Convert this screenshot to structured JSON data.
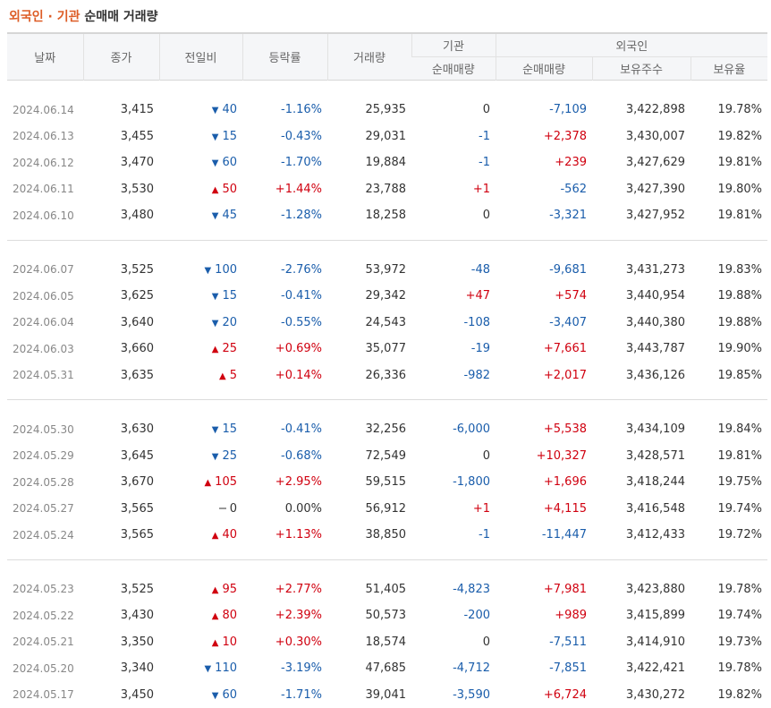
{
  "title": {
    "part1": "외국인 · 기관",
    "part2": "순매매 거래량"
  },
  "headers": {
    "date": "날짜",
    "close": "종가",
    "change": "전일비",
    "rate": "등락률",
    "volume": "거래량",
    "inst": "기관",
    "inst_net": "순매매량",
    "foreign": "외국인",
    "foreign_net": "순매매량",
    "holdings": "보유주수",
    "ratio": "보유율"
  },
  "groups": [
    [
      {
        "date": "2024.06.14",
        "close": "3,415",
        "dir": "down",
        "change": "40",
        "rate": "-1.16%",
        "volume": "25,935",
        "inst": "0",
        "foreign": "-7,109",
        "holdings": "3,422,898",
        "ratio": "19.78%"
      },
      {
        "date": "2024.06.13",
        "close": "3,455",
        "dir": "down",
        "change": "15",
        "rate": "-0.43%",
        "volume": "29,031",
        "inst": "-1",
        "foreign": "+2,378",
        "holdings": "3,430,007",
        "ratio": "19.82%"
      },
      {
        "date": "2024.06.12",
        "close": "3,470",
        "dir": "down",
        "change": "60",
        "rate": "-1.70%",
        "volume": "19,884",
        "inst": "-1",
        "foreign": "+239",
        "holdings": "3,427,629",
        "ratio": "19.81%"
      },
      {
        "date": "2024.06.11",
        "close": "3,530",
        "dir": "up",
        "change": "50",
        "rate": "+1.44%",
        "volume": "23,788",
        "inst": "+1",
        "foreign": "-562",
        "holdings": "3,427,390",
        "ratio": "19.80%"
      },
      {
        "date": "2024.06.10",
        "close": "3,480",
        "dir": "down",
        "change": "45",
        "rate": "-1.28%",
        "volume": "18,258",
        "inst": "0",
        "foreign": "-3,321",
        "holdings": "3,427,952",
        "ratio": "19.81%"
      }
    ],
    [
      {
        "date": "2024.06.07",
        "close": "3,525",
        "dir": "down",
        "change": "100",
        "rate": "-2.76%",
        "volume": "53,972",
        "inst": "-48",
        "foreign": "-9,681",
        "holdings": "3,431,273",
        "ratio": "19.83%"
      },
      {
        "date": "2024.06.05",
        "close": "3,625",
        "dir": "down",
        "change": "15",
        "rate": "-0.41%",
        "volume": "29,342",
        "inst": "+47",
        "foreign": "+574",
        "holdings": "3,440,954",
        "ratio": "19.88%"
      },
      {
        "date": "2024.06.04",
        "close": "3,640",
        "dir": "down",
        "change": "20",
        "rate": "-0.55%",
        "volume": "24,543",
        "inst": "-108",
        "foreign": "-3,407",
        "holdings": "3,440,380",
        "ratio": "19.88%"
      },
      {
        "date": "2024.06.03",
        "close": "3,660",
        "dir": "up",
        "change": "25",
        "rate": "+0.69%",
        "volume": "35,077",
        "inst": "-19",
        "foreign": "+7,661",
        "holdings": "3,443,787",
        "ratio": "19.90%"
      },
      {
        "date": "2024.05.31",
        "close": "3,635",
        "dir": "up",
        "change": "5",
        "rate": "+0.14%",
        "volume": "26,336",
        "inst": "-982",
        "foreign": "+2,017",
        "holdings": "3,436,126",
        "ratio": "19.85%"
      }
    ],
    [
      {
        "date": "2024.05.30",
        "close": "3,630",
        "dir": "down",
        "change": "15",
        "rate": "-0.41%",
        "volume": "32,256",
        "inst": "-6,000",
        "foreign": "+5,538",
        "holdings": "3,434,109",
        "ratio": "19.84%"
      },
      {
        "date": "2024.05.29",
        "close": "3,645",
        "dir": "down",
        "change": "25",
        "rate": "-0.68%",
        "volume": "72,549",
        "inst": "0",
        "foreign": "+10,327",
        "holdings": "3,428,571",
        "ratio": "19.81%"
      },
      {
        "date": "2024.05.28",
        "close": "3,670",
        "dir": "up",
        "change": "105",
        "rate": "+2.95%",
        "volume": "59,515",
        "inst": "-1,800",
        "foreign": "+1,696",
        "holdings": "3,418,244",
        "ratio": "19.75%"
      },
      {
        "date": "2024.05.27",
        "close": "3,565",
        "dir": "flat",
        "change": "0",
        "rate": "0.00%",
        "volume": "56,912",
        "inst": "+1",
        "foreign": "+4,115",
        "holdings": "3,416,548",
        "ratio": "19.74%"
      },
      {
        "date": "2024.05.24",
        "close": "3,565",
        "dir": "up",
        "change": "40",
        "rate": "+1.13%",
        "volume": "38,850",
        "inst": "-1",
        "foreign": "-11,447",
        "holdings": "3,412,433",
        "ratio": "19.72%"
      }
    ],
    [
      {
        "date": "2024.05.23",
        "close": "3,525",
        "dir": "up",
        "change": "95",
        "rate": "+2.77%",
        "volume": "51,405",
        "inst": "-4,823",
        "foreign": "+7,981",
        "holdings": "3,423,880",
        "ratio": "19.78%"
      },
      {
        "date": "2024.05.22",
        "close": "3,430",
        "dir": "up",
        "change": "80",
        "rate": "+2.39%",
        "volume": "50,573",
        "inst": "-200",
        "foreign": "+989",
        "holdings": "3,415,899",
        "ratio": "19.74%"
      },
      {
        "date": "2024.05.21",
        "close": "3,350",
        "dir": "up",
        "change": "10",
        "rate": "+0.30%",
        "volume": "18,574",
        "inst": "0",
        "foreign": "-7,511",
        "holdings": "3,414,910",
        "ratio": "19.73%"
      },
      {
        "date": "2024.05.20",
        "close": "3,340",
        "dir": "down",
        "change": "110",
        "rate": "-3.19%",
        "volume": "47,685",
        "inst": "-4,712",
        "foreign": "-7,851",
        "holdings": "3,422,421",
        "ratio": "19.78%"
      },
      {
        "date": "2024.05.17",
        "close": "3,450",
        "dir": "down",
        "change": "60",
        "rate": "-1.71%",
        "volume": "39,041",
        "inst": "-3,590",
        "foreign": "+6,724",
        "holdings": "3,430,272",
        "ratio": "19.82%"
      }
    ]
  ],
  "colors": {
    "up": "#d0000f",
    "down": "#1a5dab",
    "title_accent": "#dd5d26"
  },
  "icons": {
    "up": "triangle-up-icon",
    "down": "triangle-down-icon",
    "flat": "dash-icon"
  }
}
